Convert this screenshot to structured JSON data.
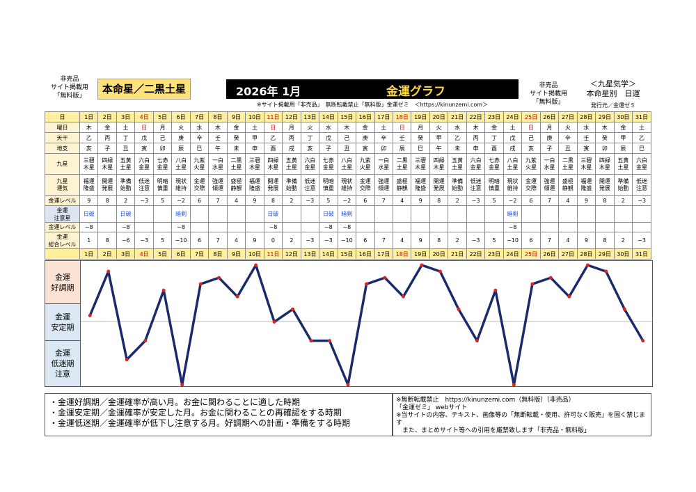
{
  "header": {
    "left_lines": [
      "非売品",
      "サイト掲載用",
      "「無料版」"
    ],
    "title": "本命星／二黒土星",
    "year_month": "2026年 1月",
    "graph_title": "金運グラフ",
    "note": "※サイト掲載用「非売品」　無断転載禁止「無料版」金運ゼミ　＜https://kinunzemi.com＞",
    "right_lines": [
      "非売品",
      "サイト掲載用",
      "「無料版」"
    ],
    "right_title_lines": [
      "＜九星気学＞",
      "本命星別　日運"
    ],
    "publisher": "発行元／金運ゼミ"
  },
  "labels": {
    "day": "日",
    "weekday": "曜日",
    "kan": "天干",
    "shi": "地支",
    "star": "九星",
    "fortune": "九星\n運気",
    "level": "金運レベル",
    "caution": "金運\n注意星",
    "level2": "金運レベル",
    "total": "金運\n総合レベル"
  },
  "days": [
    "1日",
    "2日",
    "3日",
    "4日",
    "5日",
    "6日",
    "7日",
    "8日",
    "9日",
    "10日",
    "11日",
    "12日",
    "13日",
    "14日",
    "15日",
    "16日",
    "17日",
    "18日",
    "19日",
    "20日",
    "21日",
    "22日",
    "23日",
    "24日",
    "25日",
    "26日",
    "27日",
    "28日",
    "29日",
    "30日",
    "31日"
  ],
  "weekdays": [
    "木",
    "金",
    "土",
    "日",
    "月",
    "火",
    "水",
    "木",
    "金",
    "土",
    "日",
    "月",
    "火",
    "水",
    "木",
    "金",
    "土",
    "日",
    "月",
    "火",
    "水",
    "木",
    "金",
    "土",
    "日",
    "月",
    "火",
    "水",
    "木",
    "金",
    "土"
  ],
  "kan": [
    "乙",
    "丙",
    "丁",
    "戊",
    "己",
    "庚",
    "辛",
    "壬",
    "癸",
    "甲",
    "乙",
    "丙",
    "丁",
    "戊",
    "己",
    "庚",
    "辛",
    "壬",
    "癸",
    "甲",
    "乙",
    "丙",
    "丁",
    "戊",
    "己",
    "庚",
    "辛",
    "壬",
    "癸",
    "甲",
    "乙"
  ],
  "shi": [
    "亥",
    "子",
    "丑",
    "寅",
    "卯",
    "辰",
    "巳",
    "午",
    "未",
    "申",
    "酉",
    "戌",
    "亥",
    "子",
    "丑",
    "寅",
    "卯",
    "辰",
    "巳",
    "午",
    "未",
    "申",
    "酉",
    "戌",
    "亥",
    "子",
    "丑",
    "寅",
    "卯",
    "辰",
    "巳"
  ],
  "stars": [
    "三碧\n木星",
    "四緑\n木星",
    "五黄\n土星",
    "六白\n金星",
    "七赤\n金星",
    "八白\n土星",
    "九紫\n火星",
    "一白\n水星",
    "二黒\n土星",
    "三碧\n木星",
    "四緑\n木星",
    "五黄\n土星",
    "六白\n金星",
    "七赤\n金星",
    "八白\n土星",
    "九紫\n火星",
    "一白\n水星",
    "二黒\n土星",
    "三碧\n木星",
    "四緑\n木星",
    "五黄\n土星",
    "六白\n金星",
    "七赤\n金星",
    "八白\n土星",
    "九紫\n火星",
    "一白\n水星",
    "二黒\n土星",
    "三碧\n木星",
    "四緑\n木星",
    "五黄\n土星",
    "六白\n金星"
  ],
  "fortunes": [
    "福運\n隆盛",
    "開運\n発展",
    "準備\n始動",
    "低迷\n注意",
    "明暗\n慎重",
    "現状\n維持",
    "金運\n交際",
    "強運\n傾運",
    "盛極\n静観",
    "福運\n隆盛",
    "開運\n発展",
    "準備\n始動",
    "低迷\n注意",
    "明暗\n慎重",
    "現状\n維持",
    "金運\n交際",
    "強運\n傾運",
    "盛極\n静観",
    "福運\n隆盛",
    "開運\n発展",
    "準備\n始動",
    "低迷\n注意",
    "明暗\n慎重",
    "現状\n維持",
    "金運\n交際",
    "強運\n傾運",
    "盛極\n静観",
    "福運\n隆盛",
    "開運\n発展",
    "準備\n始動",
    "低迷\n注意"
  ],
  "levels": [
    "9",
    "8",
    "2",
    "−3",
    "5",
    "−2",
    "6",
    "7",
    "4",
    "9",
    "8",
    "2",
    "−3",
    "5",
    "−2",
    "6",
    "7",
    "4",
    "9",
    "8",
    "2",
    "−3",
    "5",
    "−2",
    "6",
    "7",
    "4",
    "9",
    "8",
    "2",
    "−3"
  ],
  "cautions": [
    "日破",
    "",
    "日破",
    "",
    "",
    "暗剣",
    "",
    "",
    "",
    "",
    "日破",
    "",
    "",
    "日破",
    "暗剣",
    "",
    "",
    "",
    "",
    "",
    "",
    "",
    "",
    "暗剣",
    "",
    "",
    "",
    "",
    "",
    "",
    ""
  ],
  "levels2": [
    "−8",
    "",
    "−8",
    "",
    "",
    "−8",
    "",
    "",
    "",
    "",
    "−8",
    "",
    "",
    "−8",
    "−8",
    "",
    "",
    "",
    "",
    "",
    "",
    "",
    "",
    "−8",
    "",
    "",
    "",
    "",
    "",
    "",
    ""
  ],
  "totals": [
    "1",
    "8",
    "−6",
    "−3",
    "5",
    "−10",
    "6",
    "7",
    "4",
    "9",
    "0",
    "2",
    "−3",
    "−3",
    "−10",
    "6",
    "7",
    "4",
    "9",
    "8",
    "2",
    "−3",
    "5",
    "−10",
    "6",
    "7",
    "4",
    "9",
    "8",
    "2",
    "−3"
  ],
  "zones": {
    "good": "金運\n好調期",
    "stable": "金運\n安定期",
    "low": "金運\n低迷期\n注意"
  },
  "legend": [
    "・金運好調期／金運確率が高い月。お金に関わることに適した時期",
    "・金運安定期／金運確率が安定した月。お金に関わることの再確認をする時期",
    "・金運低迷期／金運確率が低下し注意する月。好調期への計画・準備をする時期"
  ],
  "copyright": [
    "※無断転載禁止　https://kinunzemi.com（無料版）（非売品）",
    "「金運ゼミ」 webサイト",
    "※当サイトの内容、テキスト、画像等の「無断転載・使用、許可なく販売」を固く禁じます",
    "　また、まとめサイト等への引用を厳禁致します「非売品・無料版」"
  ],
  "colors": {
    "line": "#1a2a6c",
    "marker": "#e0241b",
    "sunday": "#d40000",
    "header_yellow": "#ffef9e"
  },
  "chart_data": {
    "type": "line",
    "categories": [
      "1日",
      "2日",
      "3日",
      "4日",
      "5日",
      "6日",
      "7日",
      "8日",
      "9日",
      "10日",
      "11日",
      "12日",
      "13日",
      "14日",
      "15日",
      "16日",
      "17日",
      "18日",
      "19日",
      "20日",
      "21日",
      "22日",
      "23日",
      "24日",
      "25日",
      "26日",
      "27日",
      "28日",
      "29日",
      "30日",
      "31日"
    ],
    "series": [
      {
        "values": [
          1,
          8,
          -6,
          -3,
          5,
          -10,
          6,
          7,
          4,
          9,
          0,
          2,
          -3,
          -3,
          -10,
          6,
          7,
          4,
          9,
          8,
          2,
          -3,
          5,
          -10,
          6,
          7,
          4,
          9,
          8,
          2,
          -3
        ]
      }
    ],
    "ylim": [
      -10,
      9
    ],
    "grid": "midline"
  }
}
